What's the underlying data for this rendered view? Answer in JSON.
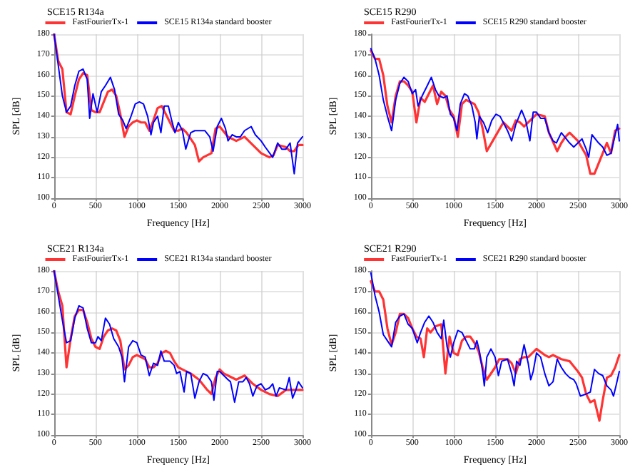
{
  "chart_data": [
    {
      "type": "line",
      "title": "SCE15 R134a",
      "xlabel": "Frequency [Hz]",
      "ylabel": "SPL [dB]",
      "xlim": [
        0,
        3000
      ],
      "xticks": [
        0,
        500,
        1000,
        1500,
        2000,
        2500,
        3000
      ],
      "ylim": [
        100,
        180
      ],
      "yticks": [
        100,
        110,
        120,
        130,
        140,
        150,
        160,
        170,
        180
      ],
      "grid": true,
      "legend": "top",
      "series": [
        {
          "name": "FastFourierTx-1",
          "color": "#ff3333",
          "x": [
            0,
            50,
            100,
            150,
            200,
            250,
            300,
            350,
            400,
            450,
            500,
            550,
            600,
            650,
            700,
            750,
            800,
            850,
            900,
            950,
            1000,
            1050,
            1100,
            1150,
            1200,
            1250,
            1300,
            1350,
            1400,
            1450,
            1500,
            1550,
            1600,
            1700,
            1750,
            1800,
            1900,
            1950,
            2000,
            2100,
            2200,
            2300,
            2400,
            2500,
            2600,
            2650,
            2700,
            2800,
            2850,
            2900,
            2950,
            3000
          ],
          "values": [
            180,
            167,
            163,
            142,
            141,
            150,
            158,
            161,
            160,
            143,
            142,
            142,
            147,
            152,
            153,
            150,
            141,
            130,
            135,
            137,
            138,
            137,
            137,
            133,
            138,
            144,
            145,
            141,
            137,
            133,
            133,
            134,
            132,
            126,
            118,
            120,
            122,
            134,
            135,
            130,
            128,
            130,
            126,
            122,
            120,
            121,
            126,
            125,
            123,
            123,
            126,
            126
          ]
        },
        {
          "name": "SCE15 R134a standard booster",
          "color": "#0000ff",
          "x": [
            0,
            50,
            100,
            150,
            200,
            250,
            300,
            350,
            400,
            430,
            470,
            520,
            570,
            620,
            680,
            730,
            780,
            830,
            870,
            920,
            980,
            1030,
            1080,
            1130,
            1170,
            1200,
            1250,
            1290,
            1330,
            1380,
            1420,
            1460,
            1500,
            1550,
            1590,
            1650,
            1700,
            1770,
            1820,
            1880,
            1920,
            1970,
            2020,
            2070,
            2100,
            2150,
            2200,
            2250,
            2300,
            2380,
            2430,
            2500,
            2550,
            2640,
            2700,
            2750,
            2800,
            2850,
            2900,
            2940,
            3000
          ],
          "values": [
            180,
            165,
            150,
            142,
            145,
            155,
            162,
            163,
            158,
            139,
            151,
            142,
            152,
            155,
            159,
            153,
            141,
            138,
            134,
            139,
            146,
            147,
            146,
            140,
            131,
            137,
            140,
            132,
            145,
            145,
            138,
            132,
            137,
            133,
            124,
            132,
            133,
            133,
            133,
            130,
            123,
            135,
            139,
            134,
            128,
            131,
            130,
            130,
            133,
            135,
            131,
            128,
            125,
            120,
            127,
            124,
            124,
            127,
            112,
            127,
            130
          ]
        }
      ]
    },
    {
      "type": "line",
      "title": "SCE15 R290",
      "xlabel": "Frequency [Hz]",
      "ylabel": "SPL [dB]",
      "xlim": [
        0,
        3000
      ],
      "xticks": [
        0,
        500,
        1000,
        1500,
        2000,
        2500,
        3000
      ],
      "ylim": [
        100,
        180
      ],
      "yticks": [
        100,
        110,
        120,
        130,
        140,
        150,
        160,
        170,
        180
      ],
      "grid": true,
      "legend": "top",
      "series": [
        {
          "name": "FastFourierTx-1",
          "color": "#ff3333",
          "x": [
            0,
            50,
            100,
            150,
            200,
            250,
            300,
            350,
            400,
            450,
            500,
            550,
            600,
            650,
            700,
            750,
            800,
            850,
            900,
            950,
            1000,
            1050,
            1100,
            1150,
            1200,
            1250,
            1300,
            1350,
            1400,
            1500,
            1600,
            1700,
            1750,
            1800,
            1850,
            1900,
            1950,
            2000,
            2100,
            2150,
            2250,
            2300,
            2350,
            2400,
            2500,
            2600,
            2650,
            2700,
            2800,
            2850,
            2900,
            2950,
            3000
          ],
          "values": [
            172,
            168,
            168,
            160,
            145,
            137,
            150,
            157,
            157,
            155,
            152,
            137,
            149,
            147,
            151,
            155,
            146,
            152,
            150,
            143,
            140,
            130,
            146,
            148,
            147,
            146,
            142,
            134,
            123,
            130,
            137,
            133,
            138,
            137,
            135,
            137,
            139,
            141,
            140,
            132,
            123,
            127,
            130,
            132,
            128,
            121,
            112,
            112,
            122,
            127,
            122,
            133,
            134
          ]
        },
        {
          "name": "SCE15 R290 standard booster",
          "color": "#0000ff",
          "x": [
            0,
            50,
            100,
            150,
            200,
            250,
            300,
            350,
            400,
            450,
            500,
            540,
            570,
            620,
            670,
            730,
            780,
            820,
            880,
            920,
            960,
            1000,
            1040,
            1080,
            1130,
            1170,
            1220,
            1260,
            1280,
            1310,
            1360,
            1410,
            1460,
            1510,
            1560,
            1650,
            1700,
            1750,
            1820,
            1870,
            1920,
            1960,
            2000,
            2050,
            2100,
            2150,
            2200,
            2240,
            2300,
            2400,
            2450,
            2500,
            2550,
            2600,
            2630,
            2670,
            2750,
            2800,
            2850,
            2900,
            2950,
            2980,
            3000
          ],
          "values": [
            173,
            168,
            160,
            148,
            140,
            133,
            148,
            156,
            159,
            157,
            151,
            153,
            145,
            150,
            154,
            159,
            153,
            150,
            149,
            150,
            141,
            139,
            133,
            146,
            151,
            150,
            145,
            137,
            129,
            140,
            137,
            132,
            138,
            141,
            140,
            133,
            128,
            136,
            143,
            138,
            128,
            142,
            142,
            139,
            139,
            132,
            128,
            127,
            132,
            127,
            125,
            127,
            129,
            124,
            120,
            131,
            127,
            125,
            121,
            122,
            131,
            136,
            128
          ]
        }
      ]
    },
    {
      "type": "line",
      "title": "SCE21 R134a",
      "xlabel": "Frequency [Hz]",
      "ylabel": "SPL [dB]",
      "xlim": [
        0,
        3000
      ],
      "xticks": [
        0,
        500,
        1000,
        1500,
        2000,
        2500,
        3000
      ],
      "ylim": [
        100,
        180
      ],
      "yticks": [
        100,
        110,
        120,
        130,
        140,
        150,
        160,
        170,
        180
      ],
      "grid": true,
      "legend": "top",
      "series": [
        {
          "name": "FastFourierTx-1",
          "color": "#ff3333",
          "x": [
            0,
            50,
            100,
            150,
            200,
            250,
            300,
            350,
            400,
            450,
            500,
            550,
            600,
            650,
            700,
            750,
            800,
            850,
            900,
            950,
            1000,
            1050,
            1100,
            1150,
            1200,
            1250,
            1300,
            1350,
            1400,
            1450,
            1500,
            1550,
            1650,
            1750,
            1850,
            1900,
            1950,
            2000,
            2050,
            2100,
            2200,
            2300,
            2400,
            2500,
            2600,
            2700,
            2800,
            2900,
            3000
          ],
          "values": [
            180,
            170,
            163,
            133,
            147,
            158,
            161,
            161,
            155,
            147,
            143,
            142,
            148,
            151,
            152,
            151,
            146,
            132,
            134,
            138,
            139,
            138,
            137,
            133,
            133,
            135,
            140,
            141,
            140,
            136,
            133,
            132,
            130,
            127,
            122,
            120,
            128,
            132,
            130,
            129,
            127,
            129,
            125,
            122,
            120,
            119,
            122,
            122,
            122
          ]
        },
        {
          "name": "SCE21 R134a standard booster",
          "color": "#0000ff",
          "x": [
            0,
            50,
            100,
            150,
            200,
            250,
            300,
            350,
            400,
            450,
            500,
            530,
            570,
            620,
            670,
            720,
            780,
            820,
            850,
            900,
            950,
            1000,
            1050,
            1100,
            1150,
            1200,
            1250,
            1290,
            1330,
            1400,
            1450,
            1480,
            1520,
            1570,
            1600,
            1650,
            1700,
            1750,
            1800,
            1850,
            1900,
            1930,
            1970,
            2000,
            2050,
            2100,
            2130,
            2180,
            2230,
            2280,
            2320,
            2360,
            2400,
            2450,
            2500,
            2550,
            2600,
            2640,
            2680,
            2720,
            2800,
            2840,
            2880,
            2920,
            2950,
            3000
          ],
          "values": [
            180,
            168,
            156,
            145,
            146,
            157,
            163,
            162,
            152,
            145,
            145,
            148,
            146,
            157,
            154,
            147,
            143,
            138,
            126,
            143,
            146,
            145,
            139,
            138,
            129,
            135,
            134,
            141,
            136,
            136,
            134,
            130,
            131,
            121,
            131,
            130,
            118,
            126,
            130,
            129,
            126,
            117,
            131,
            131,
            129,
            127,
            126,
            116,
            126,
            126,
            128,
            125,
            119,
            124,
            125,
            122,
            123,
            125,
            119,
            123,
            122,
            128,
            118,
            122,
            126,
            123
          ]
        }
      ]
    },
    {
      "type": "line",
      "title": "SCE21 R290",
      "xlabel": "Frequency [Hz]",
      "ylabel": "SPL [dB]",
      "xlim": [
        0,
        3000
      ],
      "xticks": [
        0,
        500,
        1000,
        1500,
        2000,
        2500,
        3000
      ],
      "ylim": [
        100,
        180
      ],
      "yticks": [
        100,
        110,
        120,
        130,
        140,
        150,
        160,
        170,
        180
      ],
      "grid": true,
      "legend": "top",
      "series": [
        {
          "name": "FastFourierTx-1",
          "color": "#ff3333",
          "x": [
            0,
            50,
            100,
            150,
            200,
            250,
            300,
            350,
            400,
            450,
            500,
            550,
            600,
            640,
            680,
            720,
            780,
            850,
            900,
            950,
            1000,
            1050,
            1100,
            1150,
            1200,
            1250,
            1300,
            1350,
            1400,
            1500,
            1550,
            1650,
            1700,
            1750,
            1800,
            1850,
            1900,
            1950,
            2000,
            2100,
            2150,
            2200,
            2300,
            2400,
            2500,
            2550,
            2600,
            2650,
            2700,
            2730,
            2760,
            2800,
            2850,
            2900,
            2950,
            3000
          ],
          "values": [
            175,
            170,
            170,
            166,
            152,
            144,
            150,
            159,
            159,
            157,
            152,
            148,
            147,
            138,
            152,
            150,
            153,
            154,
            130,
            148,
            140,
            139,
            146,
            148,
            148,
            145,
            141,
            133,
            127,
            133,
            137,
            137,
            135,
            130,
            137,
            138,
            138,
            140,
            142,
            139,
            138,
            139,
            137,
            136,
            131,
            128,
            120,
            116,
            117,
            112,
            107,
            117,
            128,
            129,
            133,
            139
          ]
        },
        {
          "name": "SCE21 R290 standard booster",
          "color": "#0000ff",
          "x": [
            0,
            50,
            100,
            150,
            200,
            250,
            300,
            350,
            400,
            450,
            500,
            560,
            600,
            650,
            700,
            750,
            800,
            850,
            880,
            920,
            960,
            1000,
            1050,
            1100,
            1150,
            1200,
            1250,
            1280,
            1310,
            1350,
            1370,
            1400,
            1450,
            1500,
            1540,
            1580,
            1650,
            1700,
            1730,
            1760,
            1800,
            1850,
            1900,
            1930,
            1960,
            2000,
            2050,
            2100,
            2150,
            2200,
            2250,
            2300,
            2350,
            2400,
            2450,
            2480,
            2530,
            2600,
            2650,
            2700,
            2750,
            2800,
            2850,
            2900,
            2930,
            2960,
            3000
          ],
          "values": [
            179,
            168,
            160,
            149,
            146,
            143,
            155,
            158,
            159,
            154,
            152,
            145,
            150,
            155,
            158,
            155,
            150,
            147,
            156,
            143,
            138,
            145,
            151,
            150,
            146,
            142,
            142,
            146,
            141,
            131,
            124,
            138,
            142,
            138,
            129,
            136,
            137,
            130,
            124,
            136,
            134,
            144,
            135,
            127,
            131,
            140,
            138,
            130,
            124,
            126,
            137,
            133,
            130,
            128,
            127,
            125,
            119,
            120,
            121,
            132,
            130,
            129,
            124,
            122,
            119,
            124,
            131
          ]
        }
      ]
    }
  ]
}
